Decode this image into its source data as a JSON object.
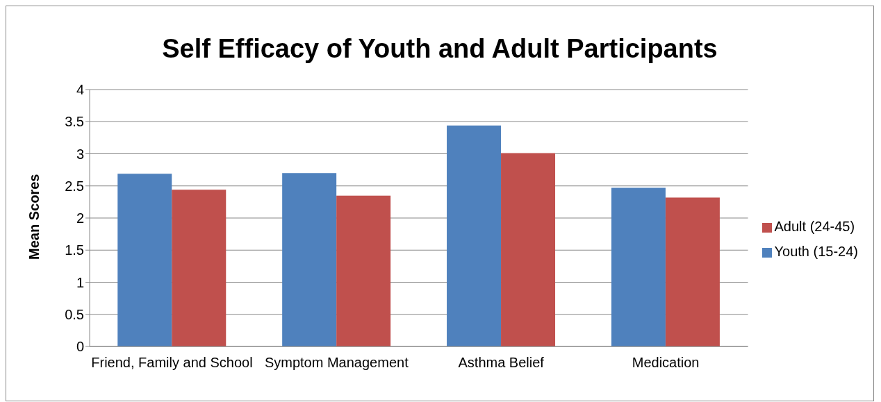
{
  "chart_data": {
    "type": "bar",
    "title": "Self Efficacy of Youth and Adult Participants",
    "ylabel": "Mean Scores",
    "categories": [
      "Friend, Family and School",
      "Symptom Management",
      "Asthma Belief",
      "Medication"
    ],
    "series": [
      {
        "name": "Youth (15-24)",
        "color": "#4f81bd",
        "values": [
          2.69,
          2.7,
          3.44,
          2.47
        ]
      },
      {
        "name": "Adult (24-45)",
        "color": "#c0504d",
        "values": [
          2.44,
          2.35,
          3.01,
          2.32
        ]
      }
    ],
    "ylim": [
      0,
      4
    ],
    "yticks": [
      0,
      0.5,
      1,
      1.5,
      2,
      2.5,
      3,
      3.5,
      4
    ],
    "grid": "y",
    "legend": "right"
  }
}
